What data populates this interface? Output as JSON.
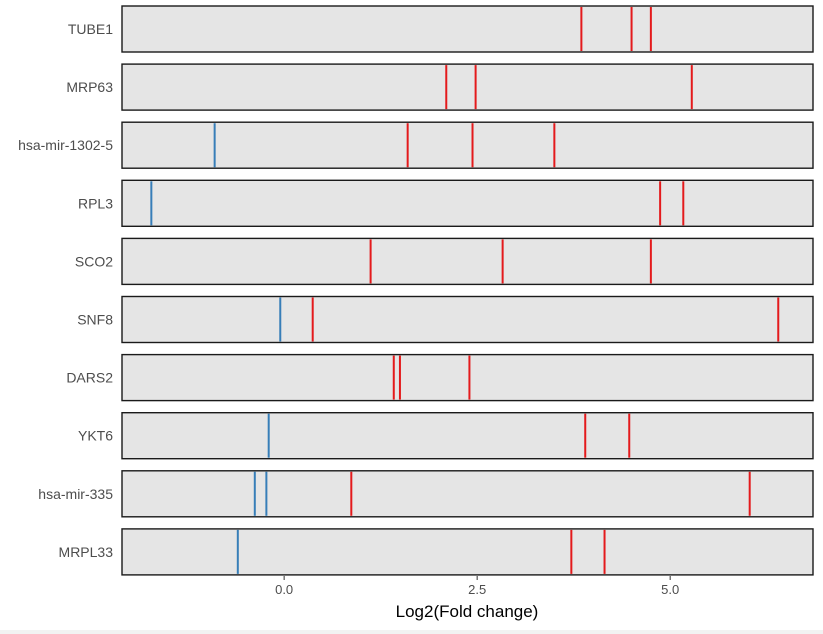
{
  "chart_data": {
    "type": "barcode",
    "xlabel": "Log2(Fold change)",
    "xlim": [
      -2.1,
      6.85
    ],
    "xticks": [
      0,
      2.5,
      5
    ],
    "xtick_labels": [
      "0.0",
      "2.5",
      "5.0"
    ],
    "colors": {
      "up": "#e41a1c",
      "down": "#377eb8"
    },
    "rows": [
      {
        "label": "TUBE1",
        "values": [
          3.85,
          4.5,
          4.75
        ]
      },
      {
        "label": "MRP63",
        "values": [
          2.1,
          2.48,
          5.28
        ]
      },
      {
        "label": "hsa-mir-1302-5",
        "values": [
          -0.9,
          1.6,
          2.44,
          3.5
        ]
      },
      {
        "label": "RPL3",
        "values": [
          -1.72,
          4.87,
          5.17
        ]
      },
      {
        "label": "SCO2",
        "values": [
          1.12,
          2.83,
          4.75
        ]
      },
      {
        "label": "SNF8",
        "values": [
          -0.05,
          0.37,
          6.4
        ]
      },
      {
        "label": "DARS2",
        "values": [
          1.42,
          1.5,
          2.4
        ]
      },
      {
        "label": "YKT6",
        "values": [
          -0.2,
          3.9,
          4.47
        ]
      },
      {
        "label": "hsa-mir-335",
        "values": [
          -0.38,
          -0.23,
          0.87,
          6.03
        ]
      },
      {
        "label": "MRPL33",
        "values": [
          -0.6,
          3.72,
          4.15
        ]
      }
    ]
  }
}
